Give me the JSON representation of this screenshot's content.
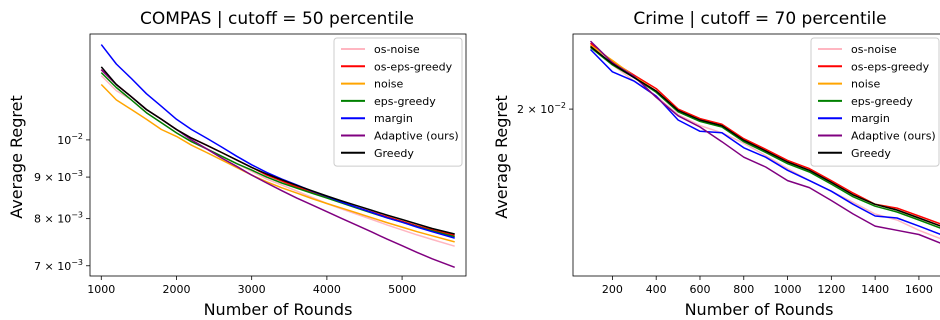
{
  "chart_data": [
    {
      "type": "line",
      "title": "COMPAS | cutoff = 50 percentile",
      "xlabel": "Number of Rounds",
      "ylabel": "Average Regret",
      "yscale": "log",
      "xlim": [
        850,
        5850
      ],
      "ylim": [
        0.0068,
        0.0135
      ],
      "x_ticks": [
        {
          "value": 1000,
          "label": "1000"
        },
        {
          "value": 2000,
          "label": "2000"
        },
        {
          "value": 3000,
          "label": "3000"
        },
        {
          "value": 4000,
          "label": "4000"
        },
        {
          "value": 5000,
          "label": "5000"
        }
      ],
      "y_ticks": [
        {
          "value": 0.01,
          "base": "10",
          "exp": "−2"
        },
        {
          "value": 0.009,
          "base": "9 × 10",
          "exp": "−3"
        },
        {
          "value": 0.008,
          "base": "8 × 10",
          "exp": "−3"
        },
        {
          "value": 0.007,
          "base": "7 × 10",
          "exp": "−3"
        }
      ],
      "legend_position": "top-right",
      "x": [
        1000,
        1200,
        1400,
        1600,
        1800,
        2000,
        2200,
        2400,
        2600,
        2800,
        3000,
        3200,
        3400,
        3600,
        3800,
        4000,
        4200,
        4400,
        4600,
        4800,
        5000,
        5200,
        5400,
        5700
      ],
      "series": [
        {
          "name": "os-noise",
          "color": "#ffb6c1",
          "values": [
            0.012,
            0.0115,
            0.0112,
            0.0108,
            0.0105,
            0.0102,
            0.00995,
            0.00975,
            0.00955,
            0.00935,
            0.00915,
            0.00895,
            0.0088,
            0.00865,
            0.0085,
            0.00835,
            0.00822,
            0.0081,
            0.00798,
            0.00786,
            0.00775,
            0.00764,
            0.00754,
            0.0074
          ]
        },
        {
          "name": "os-eps-greedy",
          "color": "#ff0000",
          "values": [
            0.0122,
            0.0117,
            0.0113,
            0.0109,
            0.0106,
            0.0103,
            0.01005,
            0.00985,
            0.00965,
            0.00945,
            0.00925,
            0.00905,
            0.0089,
            0.00875,
            0.00862,
            0.0085,
            0.00838,
            0.00826,
            0.00815,
            0.00804,
            0.00794,
            0.00784,
            0.00775,
            0.00763
          ]
        },
        {
          "name": "noise",
          "color": "#ffa500",
          "values": [
            0.0117,
            0.0112,
            0.0109,
            0.0106,
            0.0103,
            0.0101,
            0.00985,
            0.00965,
            0.00945,
            0.00925,
            0.00905,
            0.00888,
            0.00873,
            0.0086,
            0.00847,
            0.00835,
            0.00824,
            0.00813,
            0.00802,
            0.00791,
            0.00781,
            0.00771,
            0.00762,
            0.00749
          ]
        },
        {
          "name": "eps-greedy",
          "color": "#008000",
          "values": [
            0.0121,
            0.0116,
            0.0112,
            0.0108,
            0.0105,
            0.0102,
            0.00995,
            0.00975,
            0.00955,
            0.00935,
            0.00918,
            0.009,
            0.00885,
            0.00872,
            0.0086,
            0.00848,
            0.00836,
            0.00824,
            0.00813,
            0.00802,
            0.00792,
            0.00782,
            0.00773,
            0.0076
          ]
        },
        {
          "name": "margin",
          "color": "#0000ff",
          "values": [
            0.0131,
            0.0124,
            0.0119,
            0.0114,
            0.011,
            0.0106,
            0.0103,
            0.01005,
            0.0098,
            0.00955,
            0.00932,
            0.00912,
            0.00895,
            0.0088,
            0.00865,
            0.00852,
            0.00838,
            0.00826,
            0.00814,
            0.00802,
            0.00792,
            0.00781,
            0.00771,
            0.00757
          ]
        },
        {
          "name": "Adaptive (ours)",
          "color": "#800080",
          "values": [
            0.0122,
            0.0117,
            0.0113,
            0.0109,
            0.0106,
            0.0103,
            0.01,
            0.00975,
            0.0095,
            0.00928,
            0.00905,
            0.00885,
            0.00866,
            0.00848,
            0.00832,
            0.00816,
            0.008,
            0.00785,
            0.0077,
            0.00755,
            0.00741,
            0.00727,
            0.00714,
            0.00697
          ]
        },
        {
          "name": "Greedy",
          "color": "#000000",
          "values": [
            0.0123,
            0.0117,
            0.0113,
            0.0109,
            0.0106,
            0.0103,
            0.01005,
            0.00985,
            0.00965,
            0.00945,
            0.00925,
            0.00908,
            0.00893,
            0.00879,
            0.00866,
            0.00853,
            0.00841,
            0.0083,
            0.00819,
            0.00808,
            0.00798,
            0.00788,
            0.00778,
            0.00766
          ]
        }
      ]
    },
    {
      "type": "line",
      "title": "Crime | cutoff = 70 percentile",
      "xlabel": "Number of Rounds",
      "ylabel": "Average Regret",
      "yscale": "log",
      "xlim": [
        20,
        1710
      ],
      "ylim": [
        0.0107,
        0.0265
      ],
      "x_ticks": [
        {
          "value": 200,
          "label": "200"
        },
        {
          "value": 400,
          "label": "400"
        },
        {
          "value": 600,
          "label": "600"
        },
        {
          "value": 800,
          "label": "800"
        },
        {
          "value": 1000,
          "label": "1000"
        },
        {
          "value": 1200,
          "label": "1200"
        },
        {
          "value": 1400,
          "label": "1400"
        },
        {
          "value": 1600,
          "label": "1600"
        }
      ],
      "y_ticks": [
        {
          "value": 0.02,
          "base": "2 × 10",
          "exp": "−2"
        }
      ],
      "legend_position": "top-right",
      "x": [
        100,
        200,
        300,
        400,
        500,
        600,
        700,
        800,
        900,
        1000,
        1100,
        1200,
        1300,
        1400,
        1500,
        1600,
        1700
      ],
      "series": [
        {
          "name": "os-noise",
          "color": "#ffb6c1",
          "values": [
            0.0255,
            0.0236,
            0.0222,
            0.021,
            0.0196,
            0.0188,
            0.0183,
            0.0176,
            0.0168,
            0.016,
            0.0153,
            0.0147,
            0.0141,
            0.0135,
            0.0132,
            0.0127,
            0.0123
          ]
        },
        {
          "name": "os-eps-greedy",
          "color": "#ff0000",
          "values": [
            0.0256,
            0.0239,
            0.0227,
            0.0216,
            0.02,
            0.0193,
            0.0189,
            0.0179,
            0.0172,
            0.0165,
            0.016,
            0.0153,
            0.0146,
            0.014,
            0.0138,
            0.0134,
            0.013
          ]
        },
        {
          "name": "noise",
          "color": "#ffa500",
          "values": [
            0.0254,
            0.024,
            0.0226,
            0.0214,
            0.0199,
            0.0192,
            0.0188,
            0.0178,
            0.0171,
            0.0164,
            0.0159,
            0.0152,
            0.0145,
            0.014,
            0.0137,
            0.0133,
            0.0129
          ]
        },
        {
          "name": "eps-greedy",
          "color": "#008000",
          "values": [
            0.0252,
            0.0236,
            0.0225,
            0.0213,
            0.0198,
            0.0191,
            0.0187,
            0.0177,
            0.017,
            0.0163,
            0.0158,
            0.0151,
            0.0144,
            0.0139,
            0.0136,
            0.0132,
            0.0128
          ]
        },
        {
          "name": "margin",
          "color": "#0000ff",
          "values": [
            0.025,
            0.023,
            0.0222,
            0.021,
            0.0192,
            0.0184,
            0.0183,
            0.0173,
            0.0167,
            0.0159,
            0.0153,
            0.0147,
            0.014,
            0.0134,
            0.0133,
            0.0129,
            0.0125
          ]
        },
        {
          "name": "Adaptive (ours)",
          "color": "#800080",
          "values": [
            0.0258,
            0.0238,
            0.0226,
            0.0209,
            0.0195,
            0.0187,
            0.0177,
            0.0167,
            0.0161,
            0.0153,
            0.0149,
            0.0142,
            0.0135,
            0.0129,
            0.0127,
            0.0125,
            0.0121
          ]
        },
        {
          "name": "Greedy",
          "color": "#000000",
          "values": [
            0.0253,
            0.0237,
            0.0225,
            0.0214,
            0.0199,
            0.0192,
            0.0188,
            0.0178,
            0.0171,
            0.0164,
            0.0159,
            0.0152,
            0.0145,
            0.014,
            0.0137,
            0.0133,
            0.0129
          ]
        }
      ]
    }
  ]
}
